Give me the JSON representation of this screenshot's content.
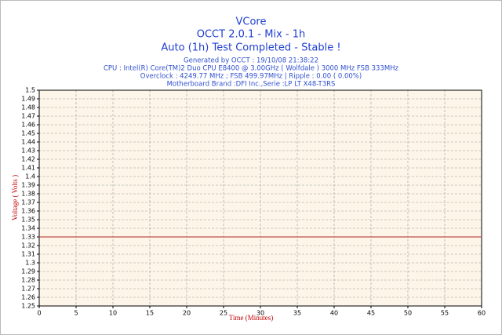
{
  "chart_data": {
    "type": "line",
    "title": "VCore",
    "subtitles": [
      "OCCT 2.0.1 - Mix - 1h",
      "Auto (1h) Test Completed - Stable !"
    ],
    "info_lines": [
      "Generated by OCCT : 19/10/08 21:38:22",
      "CPU : Intel(R) Core(TM)2 Duo CPU E8400 @ 3.00GHz ( Wolfdale ) 3000 MHz FSB 333MHz",
      "Overclock : 4249.77 MHz ; FSB 499.97MHz | Ripple : 0.00 ( 0.00%)",
      "Motherboard Brand :DFI Inc.,Serie :LP LT X48-T3RS"
    ],
    "x_label": "Time (Minutes)",
    "y_label": "Voltage ( Volts )",
    "x": [
      0,
      60
    ],
    "series": [
      {
        "name": "VCore",
        "color": "#c0504d",
        "values": [
          1.33,
          1.33
        ]
      }
    ],
    "xlim": [
      0,
      60
    ],
    "xticks": [
      0,
      5,
      10,
      15,
      20,
      25,
      30,
      35,
      40,
      45,
      50,
      55,
      60
    ],
    "ylim": [
      1.25,
      1.5
    ],
    "yticks": [
      1.25,
      1.26,
      1.27,
      1.28,
      1.29,
      1.3,
      1.31,
      1.32,
      1.33,
      1.34,
      1.35,
      1.36,
      1.37,
      1.38,
      1.39,
      1.4,
      1.41,
      1.42,
      1.43,
      1.44,
      1.45,
      1.46,
      1.47,
      1.48,
      1.49,
      1.5
    ],
    "grid": true
  }
}
